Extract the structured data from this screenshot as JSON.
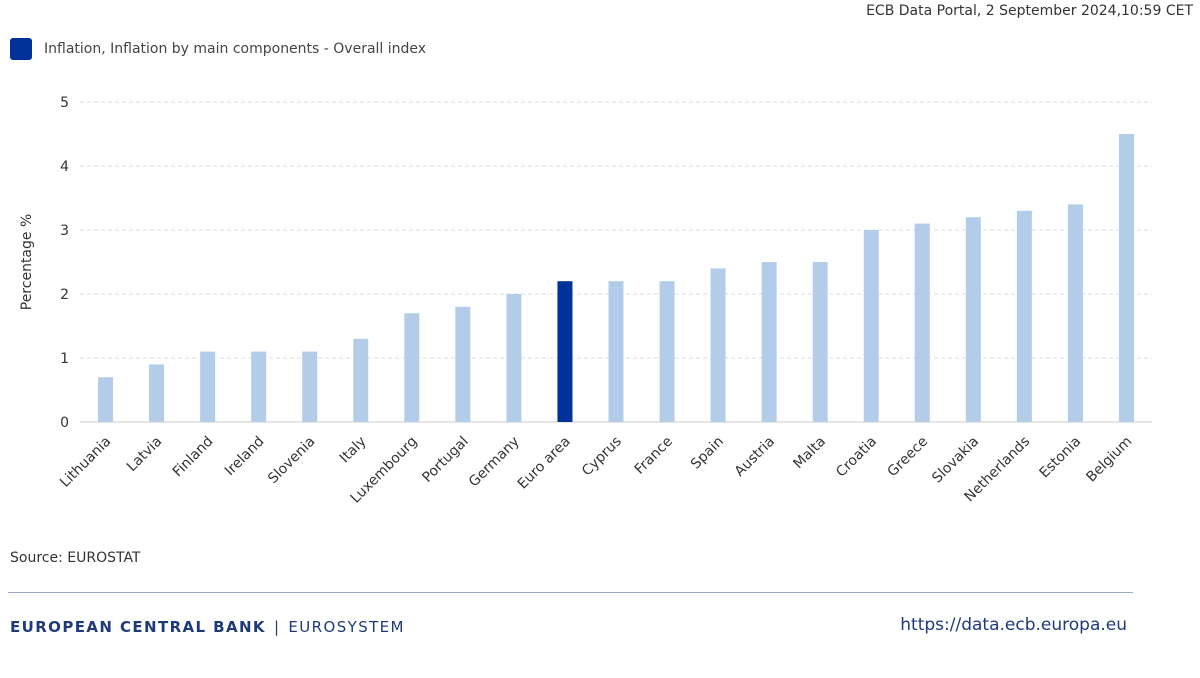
{
  "header": {
    "timestamp": "ECB Data Portal, 2 September 2024,10:59 CET"
  },
  "legend": {
    "label": "Inflation, Inflation by main components - Overall index"
  },
  "source": "Source: EUROSTAT",
  "footer": {
    "brand_main": "EUROPEAN CENTRAL BANK",
    "brand_separator": "|",
    "brand_sub": "EUROSYSTEM",
    "url": "https://data.ecb.europa.eu"
  },
  "colors": {
    "bar": "#b3cde8",
    "highlight": "#003299",
    "grid": "#dddddd",
    "text": "#333333"
  },
  "chart_data": {
    "type": "bar",
    "categories": [
      "Lithuania",
      "Latvia",
      "Finland",
      "Ireland",
      "Slovenia",
      "Italy",
      "Luxembourg",
      "Portugal",
      "Germany",
      "Euro area",
      "Cyprus",
      "France",
      "Spain",
      "Austria",
      "Malta",
      "Croatia",
      "Greece",
      "Slovakia",
      "Netherlands",
      "Estonia",
      "Belgium"
    ],
    "series": [
      {
        "name": "Inflation, Inflation by main components - Overall index",
        "values": [
          0.7,
          0.9,
          1.1,
          1.1,
          1.1,
          1.3,
          1.7,
          1.8,
          2.0,
          2.2,
          2.2,
          2.2,
          2.4,
          2.5,
          2.5,
          3.0,
          3.1,
          3.2,
          3.3,
          3.4,
          4.5
        ]
      }
    ],
    "highlight_category": "Euro area",
    "ylabel": "Percentage %",
    "xlabel": "",
    "ylim": [
      0,
      5
    ],
    "yticks": [
      0,
      1,
      2,
      3,
      4,
      5
    ],
    "grid": true
  }
}
